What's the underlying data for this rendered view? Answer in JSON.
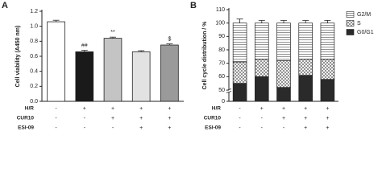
{
  "chart_data": [
    {
      "type": "bar",
      "panel_label": "A",
      "ylabel": "Cell viability (A450 nm)",
      "categories": [
        null,
        null,
        null,
        null,
        null
      ],
      "values": [
        1.06,
        0.66,
        0.84,
        0.66,
        0.75
      ],
      "errors": [
        0.02,
        0.02,
        0.015,
        0.015,
        0.015
      ],
      "colors": [
        "#ffffff",
        "#1a1a1a",
        "#c4c4c4",
        "#e2e2e2",
        "#9a9a9a"
      ],
      "annotations": [
        null,
        "##",
        "**",
        null,
        "$"
      ],
      "ylim": [
        0,
        1.2
      ],
      "yticks": [
        {
          "value": 0,
          "label": "0.0"
        },
        0.2,
        0.4,
        0.6,
        0.8,
        {
          "value": 1,
          "label": "1.0"
        },
        1.2
      ],
      "conditions": [
        {
          "label": "H/R",
          "values": [
            "-",
            "+",
            "+",
            "+",
            "+"
          ]
        },
        {
          "label": "CUR10",
          "values": [
            "-",
            "-",
            "+",
            "+",
            "+"
          ]
        },
        {
          "label": "ESI-09",
          "values": [
            "-",
            "-",
            "-",
            "+",
            "+"
          ]
        }
      ]
    },
    {
      "type": "stacked_bar",
      "panel_label": "B",
      "ylabel": "Cell cycle distribution / %",
      "categories": [
        null,
        null,
        null,
        null,
        null
      ],
      "series": [
        {
          "name": "G0/G1",
          "color": "#2a2a2a",
          "pattern": "solid",
          "values": [
            55,
            60,
            52,
            61,
            58
          ],
          "errors": [
            1.5,
            1.5,
            1.5,
            1.5,
            1.5
          ]
        },
        {
          "name": "S",
          "color": "#555555",
          "pattern": "cross",
          "values": [
            16,
            13,
            20,
            12,
            15
          ],
          "errors": [
            1.5,
            1.5,
            1.5,
            1.5,
            1.5
          ]
        },
        {
          "name": "G2/M",
          "color": "#777777",
          "pattern": "lines",
          "values": [
            29,
            27,
            28,
            27,
            27
          ],
          "errors": [
            3,
            2,
            2,
            2,
            2
          ]
        }
      ],
      "ylim": [
        0,
        110
      ],
      "yticks": [
        0,
        50,
        60,
        70,
        80,
        90,
        100,
        110
      ],
      "axis_break": true,
      "legend": "top-right",
      "conditions": [
        {
          "label": "H/R",
          "values": [
            "-",
            "+",
            "+",
            "+",
            "+"
          ]
        },
        {
          "label": "CUR10",
          "values": [
            "-",
            "-",
            "+",
            "+",
            "+"
          ]
        },
        {
          "label": "ESI-09",
          "values": [
            "-",
            "-",
            "-",
            "+",
            "+"
          ]
        }
      ]
    }
  ]
}
